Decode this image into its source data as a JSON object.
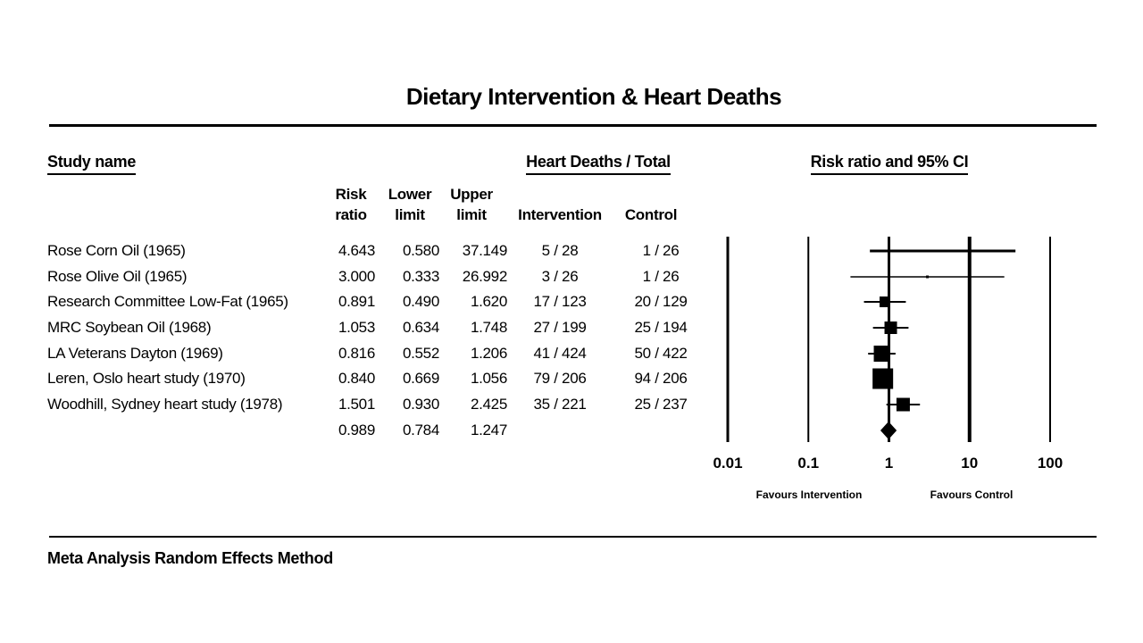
{
  "title": "Dietary Intervention & Heart Deaths",
  "columns": {
    "study": "Study name",
    "group_header": "Heart Deaths / Total",
    "plot_header": "Risk ratio and 95% CI",
    "risk_line1": "Risk",
    "risk_line2": "ratio",
    "lower_line1": "Lower",
    "lower_line2": "limit",
    "upper_line1": "Upper",
    "upper_line2": "limit",
    "intervention": "Intervention",
    "control": "Control"
  },
  "axis": {
    "tick_labels": [
      "0.01",
      "0.1",
      "1",
      "10",
      "100"
    ],
    "favours_left": "Favours Intervention",
    "favours_right": "Favours Control"
  },
  "footer": "Meta Analysis Random Effects Method",
  "colors": {
    "ink": "#000000",
    "background": "#ffffff"
  },
  "chart_data": {
    "type": "scatter",
    "subtype": "forest_plot",
    "title": "Dietary Intervention & Heart Deaths",
    "x_scale": "log10",
    "xlim": [
      0.01,
      100
    ],
    "x_ticks": [
      0.01,
      0.1,
      1,
      10,
      100
    ],
    "reference_line": 1,
    "x_annotations": {
      "left_of_1": "Favours Intervention",
      "right_of_1": "Favours Control"
    },
    "studies": [
      {
        "name": "Rose Corn Oil (1965)",
        "risk_ratio": 4.643,
        "ci_lower": 0.58,
        "ci_upper": 37.149,
        "intervention_events": "5 / 28",
        "control_events": "1 / 26",
        "marker_size": 3,
        "ci_line_width": 3
      },
      {
        "name": "Rose Olive Oil (1965)",
        "risk_ratio": 3.0,
        "ci_lower": 0.333,
        "ci_upper": 26.992,
        "intervention_events": "3 / 26",
        "control_events": "1 / 26",
        "marker_size": 3,
        "ci_line_width": 1.5
      },
      {
        "name": "Research Committee Low-Fat (1965)",
        "risk_ratio": 0.891,
        "ci_lower": 0.49,
        "ci_upper": 1.62,
        "intervention_events": "17 / 123",
        "control_events": "20 / 129",
        "marker_size": 12,
        "ci_line_width": 2
      },
      {
        "name": "MRC Soybean Oil (1968)",
        "risk_ratio": 1.053,
        "ci_lower": 0.634,
        "ci_upper": 1.748,
        "intervention_events": "27 / 199",
        "control_events": "25 / 194",
        "marker_size": 14,
        "ci_line_width": 2
      },
      {
        "name": "LA Veterans Dayton (1969)",
        "risk_ratio": 0.816,
        "ci_lower": 0.552,
        "ci_upper": 1.206,
        "intervention_events": "41 / 424",
        "control_events": "50 / 422",
        "marker_size": 18,
        "ci_line_width": 2
      },
      {
        "name": "Leren, Oslo heart study (1970)",
        "risk_ratio": 0.84,
        "ci_lower": 0.669,
        "ci_upper": 1.056,
        "intervention_events": "79 / 206",
        "control_events": "94 / 206",
        "marker_size": 23,
        "ci_line_width": 2
      },
      {
        "name": "Woodhill, Sydney heart study (1978)",
        "risk_ratio": 1.501,
        "ci_lower": 0.93,
        "ci_upper": 2.425,
        "intervention_events": "35 / 221",
        "control_events": "25 / 237",
        "marker_size": 15,
        "ci_line_width": 2
      }
    ],
    "summary": {
      "risk_ratio": 0.989,
      "ci_lower": 0.784,
      "ci_upper": 1.247,
      "marker": "diamond"
    },
    "method_note": "Meta Analysis Random Effects Method"
  }
}
